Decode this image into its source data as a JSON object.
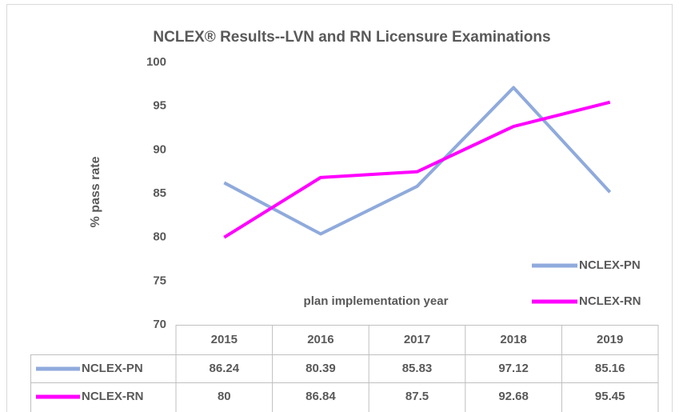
{
  "chart_data": {
    "type": "line",
    "title": "NCLEX® Results--LVN and RN Licensure Examinations",
    "ylabel": "% pass rate",
    "annotation": "plan implementation year",
    "categories": [
      "2015",
      "2016",
      "2017",
      "2018",
      "2019"
    ],
    "series": [
      {
        "name": "NCLEX-PN",
        "color": "#8faadc",
        "values": [
          86.24,
          80.39,
          85.83,
          97.12,
          85.16
        ]
      },
      {
        "name": "NCLEX-RN",
        "color": "#ff00ff",
        "values": [
          80,
          86.84,
          87.5,
          92.68,
          95.45
        ]
      }
    ],
    "ylim": [
      70,
      100
    ],
    "yticks": [
      70,
      75,
      80,
      85,
      90,
      95,
      100
    ],
    "grid": false,
    "legend": "lower right",
    "data_table": true
  }
}
